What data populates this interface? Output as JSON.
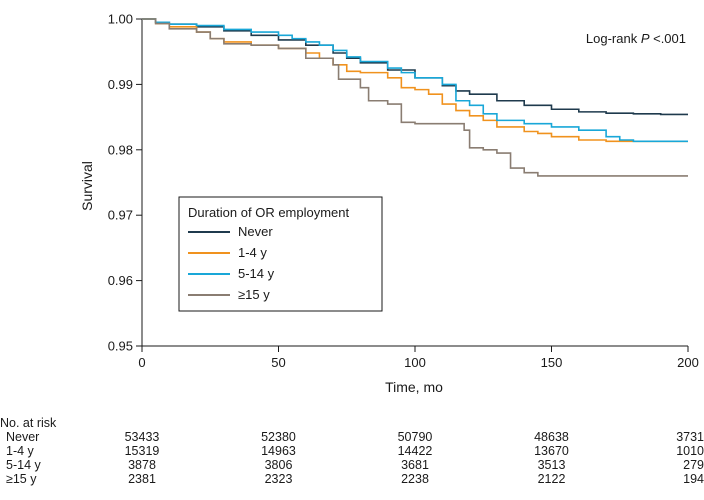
{
  "chart_data": {
    "type": "line",
    "xlabel": "Time, mo",
    "ylabel": "Survival",
    "xlim": [
      0,
      200
    ],
    "ylim": [
      0.95,
      1.0
    ],
    "x_ticks": [
      0,
      50,
      100,
      150,
      200
    ],
    "x_tick_labels": [
      "0",
      "50",
      "100",
      "150",
      "200"
    ],
    "y_ticks": [
      0.95,
      0.96,
      0.97,
      0.98,
      0.99,
      1.0
    ],
    "y_tick_labels": [
      "0.95",
      "0.96",
      "0.97",
      "0.98",
      "0.99",
      "1.00"
    ],
    "grid": false,
    "annotation": {
      "prefix": "Log-rank ",
      "italic": "P",
      "suffix": " <.001"
    },
    "legend": {
      "title": "Duration of OR employment",
      "placement": "center-left"
    },
    "series": [
      {
        "name": "Never",
        "color": "#1f3a4d",
        "points": [
          [
            0,
            1.0
          ],
          [
            5,
            0.9995
          ],
          [
            10,
            0.9992
          ],
          [
            20,
            0.9988
          ],
          [
            30,
            0.9982
          ],
          [
            40,
            0.9975
          ],
          [
            50,
            0.9968
          ],
          [
            60,
            0.996
          ],
          [
            70,
            0.9948
          ],
          [
            75,
            0.994
          ],
          [
            80,
            0.9933
          ],
          [
            90,
            0.9922
          ],
          [
            100,
            0.991
          ],
          [
            110,
            0.9898
          ],
          [
            115,
            0.989
          ],
          [
            120,
            0.9885
          ],
          [
            130,
            0.9875
          ],
          [
            140,
            0.9868
          ],
          [
            150,
            0.9862
          ],
          [
            160,
            0.9858
          ],
          [
            170,
            0.9856
          ],
          [
            180,
            0.9855
          ],
          [
            190,
            0.9854
          ],
          [
            200,
            0.9854
          ]
        ]
      },
      {
        "name": "1-4 y",
        "color": "#f0921e",
        "points": [
          [
            0,
            1.0
          ],
          [
            5,
            0.9993
          ],
          [
            10,
            0.9988
          ],
          [
            20,
            0.998
          ],
          [
            25,
            0.997
          ],
          [
            30,
            0.9965
          ],
          [
            40,
            0.996
          ],
          [
            50,
            0.9955
          ],
          [
            60,
            0.9948
          ],
          [
            65,
            0.994
          ],
          [
            70,
            0.993
          ],
          [
            75,
            0.992
          ],
          [
            80,
            0.9918
          ],
          [
            90,
            0.991
          ],
          [
            95,
            0.9895
          ],
          [
            100,
            0.9892
          ],
          [
            105,
            0.9885
          ],
          [
            110,
            0.987
          ],
          [
            115,
            0.986
          ],
          [
            120,
            0.9852
          ],
          [
            125,
            0.9845
          ],
          [
            130,
            0.9835
          ],
          [
            140,
            0.9828
          ],
          [
            145,
            0.9825
          ],
          [
            150,
            0.982
          ],
          [
            160,
            0.9815
          ],
          [
            170,
            0.9813
          ],
          [
            180,
            0.9813
          ],
          [
            200,
            0.9813
          ]
        ]
      },
      {
        "name": "5-14 y",
        "color": "#19a7d8",
        "points": [
          [
            0,
            1.0
          ],
          [
            5,
            0.9995
          ],
          [
            10,
            0.9992
          ],
          [
            20,
            0.999
          ],
          [
            30,
            0.9984
          ],
          [
            40,
            0.998
          ],
          [
            50,
            0.9975
          ],
          [
            55,
            0.997
          ],
          [
            60,
            0.9965
          ],
          [
            65,
            0.996
          ],
          [
            70,
            0.9952
          ],
          [
            75,
            0.9942
          ],
          [
            80,
            0.9935
          ],
          [
            90,
            0.9925
          ],
          [
            95,
            0.9918
          ],
          [
            100,
            0.991
          ],
          [
            110,
            0.99
          ],
          [
            115,
            0.9875
          ],
          [
            120,
            0.9868
          ],
          [
            125,
            0.9855
          ],
          [
            130,
            0.9845
          ],
          [
            140,
            0.984
          ],
          [
            150,
            0.9835
          ],
          [
            160,
            0.983
          ],
          [
            170,
            0.982
          ],
          [
            175,
            0.9815
          ],
          [
            180,
            0.9813
          ],
          [
            200,
            0.9813
          ]
        ]
      },
      {
        "name": "≥15 y",
        "color": "#8a7d72",
        "points": [
          [
            0,
            1.0
          ],
          [
            5,
            0.9993
          ],
          [
            10,
            0.9985
          ],
          [
            20,
            0.998
          ],
          [
            25,
            0.997
          ],
          [
            30,
            0.9962
          ],
          [
            40,
            0.996
          ],
          [
            50,
            0.9955
          ],
          [
            60,
            0.994
          ],
          [
            70,
            0.993
          ],
          [
            72,
            0.9908
          ],
          [
            80,
            0.9895
          ],
          [
            83,
            0.9875
          ],
          [
            90,
            0.987
          ],
          [
            95,
            0.9842
          ],
          [
            100,
            0.984
          ],
          [
            110,
            0.984
          ],
          [
            118,
            0.983
          ],
          [
            120,
            0.9803
          ],
          [
            125,
            0.98
          ],
          [
            130,
            0.9795
          ],
          [
            135,
            0.9772
          ],
          [
            140,
            0.9765
          ],
          [
            145,
            0.976
          ],
          [
            150,
            0.976
          ],
          [
            170,
            0.976
          ],
          [
            200,
            0.976
          ]
        ]
      }
    ],
    "at_risk": {
      "header": "No. at risk",
      "times": [
        0,
        50,
        100,
        150,
        200
      ],
      "rows": [
        {
          "label": "Never",
          "values": [
            "53433",
            "52380",
            "50790",
            "48638",
            "3731"
          ]
        },
        {
          "label": "1-4 y",
          "values": [
            "15319",
            "14963",
            "14422",
            "13670",
            "1010"
          ]
        },
        {
          "label": "5-14 y",
          "values": [
            "3878",
            "3806",
            "3681",
            "3513",
            "279"
          ]
        },
        {
          "label": "≥15 y",
          "values": [
            "2381",
            "2323",
            "2238",
            "2122",
            "194"
          ]
        }
      ]
    }
  }
}
